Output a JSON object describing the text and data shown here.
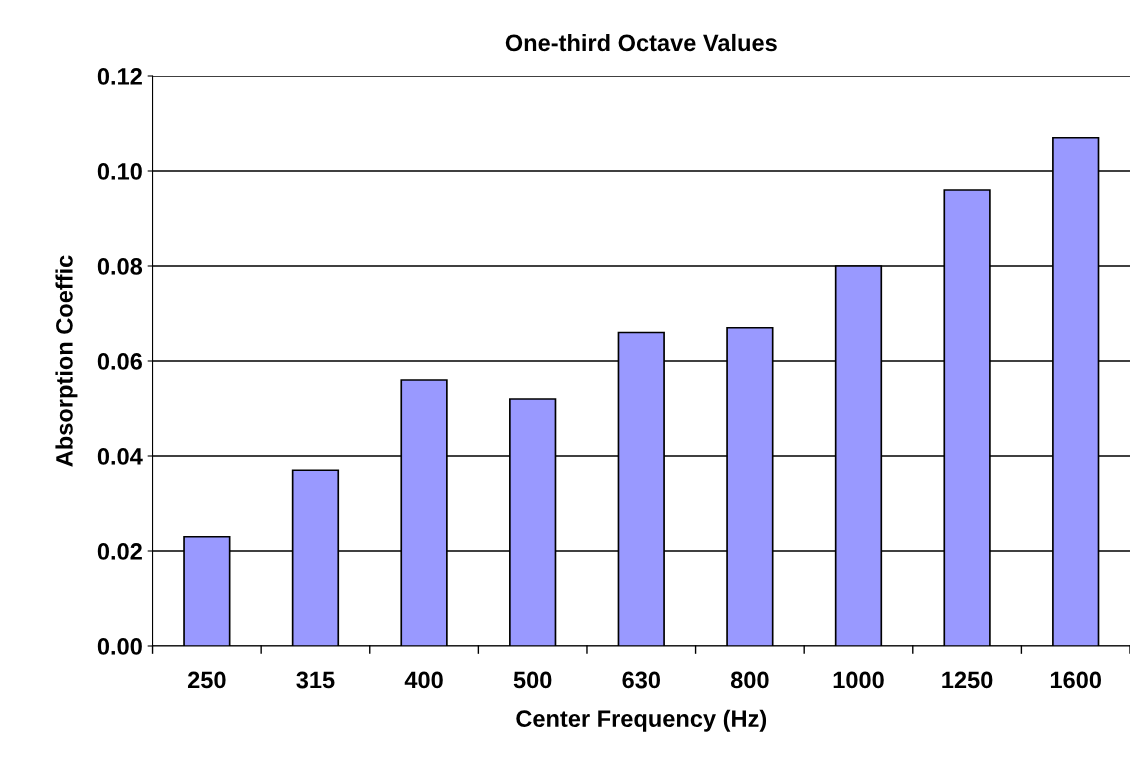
{
  "chart_data": {
    "type": "bar",
    "title": "One-third Octave Values",
    "xlabel": "Center Frequency (Hz)",
    "ylabel": "Absorption Coeffic",
    "categories": [
      "250",
      "315",
      "400",
      "500",
      "630",
      "800",
      "1000",
      "1250",
      "1600"
    ],
    "values": [
      0.023,
      0.037,
      0.056,
      0.052,
      0.066,
      0.067,
      0.08,
      0.096,
      0.107
    ],
    "color": "#9999ff",
    "ylim": [
      0,
      0.12
    ],
    "yticks": [
      {
        "value": 0,
        "label": "0.00"
      },
      {
        "value": 0.02,
        "label": "0.02"
      },
      {
        "value": 0.04,
        "label": "0.04"
      },
      {
        "value": 0.06,
        "label": "0.06"
      },
      {
        "value": 0.08,
        "label": "0.08"
      },
      {
        "value": 0.1,
        "label": "0.10"
      },
      {
        "value": 0.12,
        "label": "0.12"
      }
    ],
    "grid": "y",
    "legend": false
  }
}
